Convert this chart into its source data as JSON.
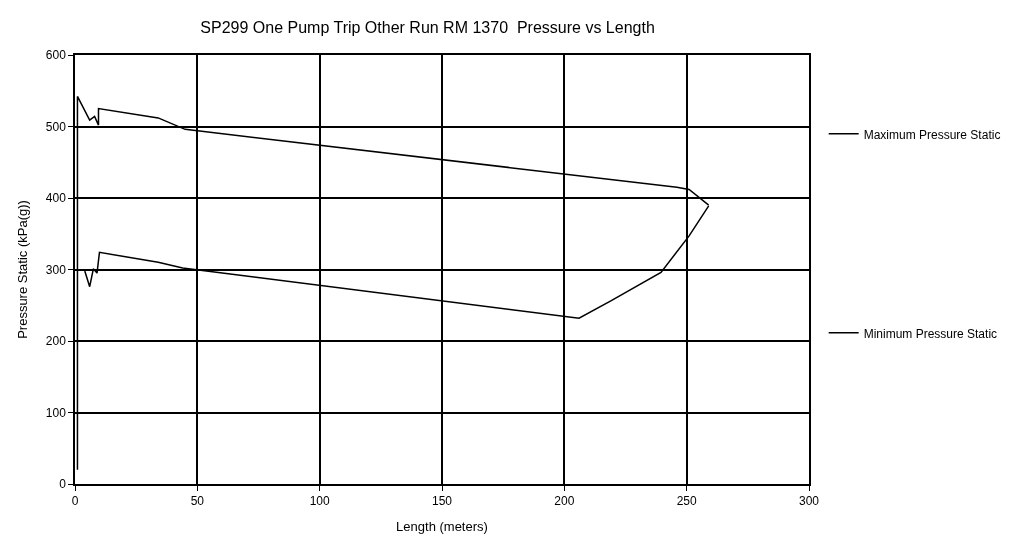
{
  "chart_data": {
    "type": "line",
    "title": "SP299 One Pump Trip Other Run RM 1370  Pressure vs Length",
    "xlabel": "Length (meters)",
    "ylabel": "Pressure Static (kPa(g))",
    "xlim": [
      0,
      300
    ],
    "xticks": [
      0,
      50,
      100,
      150,
      200,
      250,
      300
    ],
    "ylim": [
      0,
      600
    ],
    "yticks": [
      0,
      100,
      200,
      300,
      400,
      500,
      600
    ],
    "grid": true,
    "legend": "right",
    "marker": "none",
    "line_style": "solid",
    "series": [
      {
        "name": "Maximum Pressure Static",
        "color": "#000000",
        "x": [
          1,
          1,
          6,
          8,
          9.6,
          9.6,
          34,
          45,
          246,
          251,
          259
        ],
        "values": [
          20,
          542,
          509,
          514,
          502,
          525,
          512,
          496,
          415,
          412,
          390
        ]
      },
      {
        "name": "Minimum Pressure Static",
        "color": "#000000",
        "x": [
          4,
          6,
          7.5,
          9,
          10,
          34,
          44,
          206,
          219,
          239.5,
          251,
          259
        ],
        "values": [
          298,
          276,
          301,
          295,
          324,
          310,
          302,
          232,
          256,
          296,
          347,
          389
        ]
      }
    ]
  }
}
